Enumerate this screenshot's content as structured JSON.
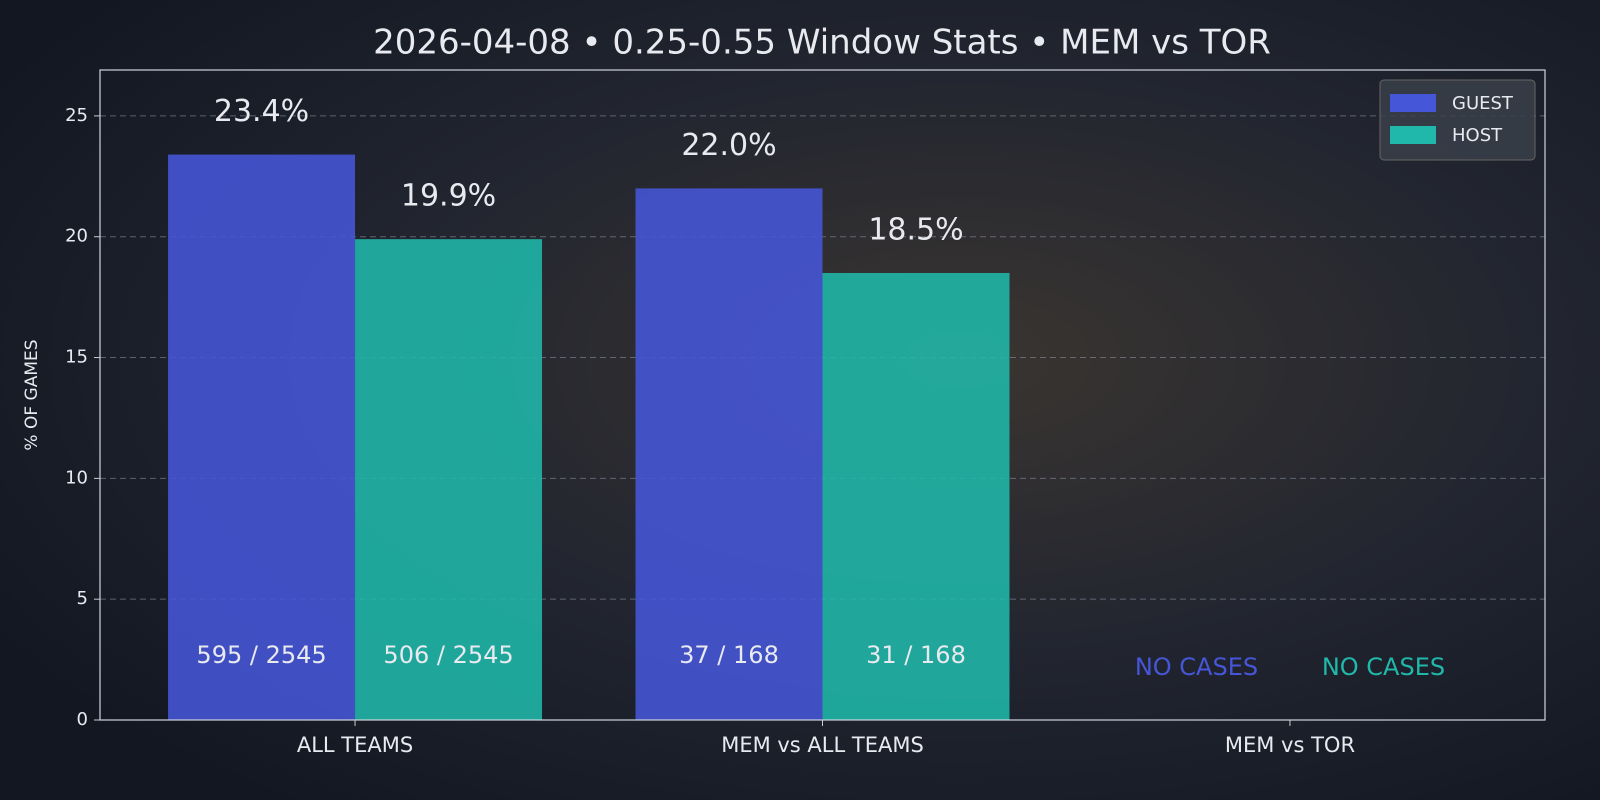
{
  "chart_data": {
    "type": "bar",
    "title": "2026-04-08 • 0.25-0.55 Window Stats • MEM vs TOR",
    "y_label": "% OF GAMES",
    "categories": [
      "ALL TEAMS",
      "MEM vs ALL TEAMS",
      "MEM vs TOR"
    ],
    "series": [
      {
        "name": "GUEST",
        "color": "#4656d8",
        "values": [
          23.4,
          22.0,
          null
        ],
        "value_labels": [
          "23.4%",
          "22.0%",
          null
        ],
        "count_labels": [
          "595 / 2545",
          "37 / 168",
          "NO CASES"
        ]
      },
      {
        "name": "HOST",
        "color": "#20b8aa",
        "values": [
          19.9,
          18.5,
          null
        ],
        "value_labels": [
          "19.9%",
          "18.5%",
          null
        ],
        "count_labels": [
          "506 / 2545",
          "31 / 168",
          "NO CASES"
        ]
      }
    ],
    "ylim": [
      0,
      26.9
    ],
    "yticks": [
      0,
      5,
      10,
      15,
      20,
      25
    ],
    "grid": true,
    "legend": "upper right"
  }
}
